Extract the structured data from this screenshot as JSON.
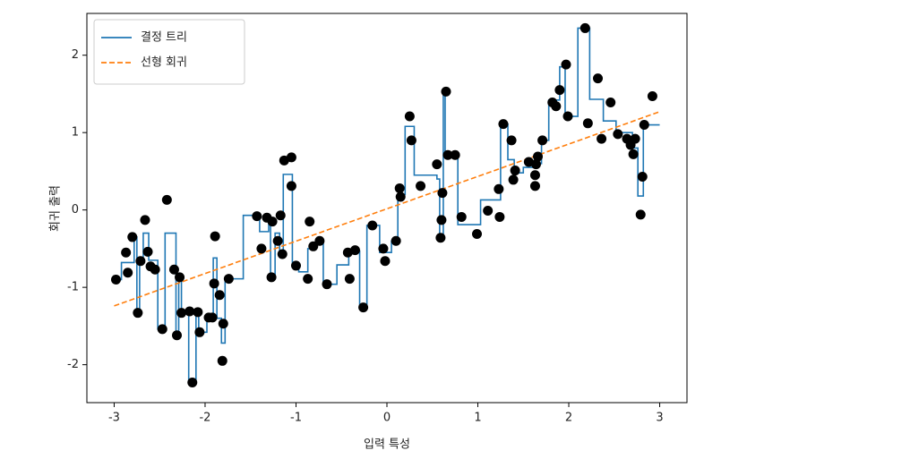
{
  "chart_data": {
    "type": "line",
    "xlabel": "입력 특성",
    "ylabel": "회귀 출력",
    "xlim": [
      -3.3,
      3.3
    ],
    "ylim": [
      -2.49,
      2.54
    ],
    "xticks": [
      -3,
      -2,
      -1,
      0,
      1,
      2,
      3
    ],
    "yticks": [
      -2,
      -1,
      0,
      1,
      2
    ],
    "legend": "upper left",
    "series": [
      {
        "name": "결정 트리",
        "color": "#1f77b4",
        "style": "steps-post",
        "x": [
          -3.0,
          -2.92,
          -2.78,
          -2.75,
          -2.72,
          -2.68,
          -2.62,
          -2.52,
          -2.44,
          -2.32,
          -2.29,
          -2.26,
          -2.18,
          -2.1,
          -2.07,
          -1.98,
          -1.91,
          -1.87,
          -1.82,
          -1.78,
          -1.6,
          -1.58,
          -1.4,
          -1.3,
          -1.28,
          -1.23,
          -1.18,
          -1.14,
          -1.04,
          -0.97,
          -0.87,
          -0.78,
          -0.7,
          -0.55,
          -0.42,
          -0.3,
          -0.22,
          -0.08,
          0.05,
          0.12,
          0.2,
          0.3,
          0.55,
          0.58,
          0.62,
          0.64,
          0.78,
          1.03,
          1.2,
          1.25,
          1.33,
          1.4,
          1.5,
          1.6,
          1.7,
          1.78,
          1.9,
          1.96,
          2.1,
          2.23,
          2.38,
          2.52,
          2.7,
          2.76,
          2.82,
          3.0
        ],
        "values": [
          -0.9,
          -0.68,
          -0.35,
          -1.33,
          -0.66,
          -0.3,
          -0.65,
          -1.54,
          -0.3,
          -1.62,
          -0.87,
          -1.33,
          -2.23,
          -1.32,
          -1.58,
          -1.39,
          -0.62,
          -1.4,
          -1.72,
          -0.89,
          -0.89,
          -0.07,
          -0.28,
          -0.13,
          -0.87,
          -0.3,
          -0.55,
          0.46,
          -0.7,
          -0.8,
          -0.5,
          -0.4,
          -0.96,
          -0.71,
          -0.53,
          -1.26,
          -0.2,
          -0.55,
          -0.4,
          0.2,
          1.08,
          0.45,
          0.4,
          -0.36,
          1.53,
          0.71,
          -0.19,
          0.13,
          0.13,
          1.11,
          0.65,
          0.48,
          0.55,
          0.6,
          0.9,
          1.42,
          1.85,
          1.21,
          2.35,
          1.43,
          1.15,
          1.0,
          0.8,
          0.18,
          1.1,
          1.1
        ]
      },
      {
        "name": "선형 회귀",
        "color": "#ff7f0e",
        "style": "dashed",
        "x": [
          -3,
          3
        ],
        "values": [
          -1.24,
          1.27
        ]
      }
    ],
    "scatter": {
      "color": "#000000",
      "x": [
        -2.98,
        -2.87,
        -2.85,
        -2.8,
        -2.74,
        -2.71,
        -2.66,
        -2.63,
        -2.6,
        -2.55,
        -2.47,
        -2.42,
        -2.34,
        -2.31,
        -2.28,
        -2.26,
        -2.17,
        -2.14,
        -2.08,
        -2.06,
        -1.96,
        -1.92,
        -1.9,
        -1.89,
        -1.84,
        -1.81,
        -1.8,
        -1.74,
        -1.43,
        -1.38,
        -1.32,
        -1.27,
        -1.26,
        -1.2,
        -1.17,
        -1.15,
        -1.13,
        -1.05,
        -1.05,
        -1.0,
        -0.87,
        -0.85,
        -0.81,
        -0.74,
        -0.66,
        -0.43,
        -0.41,
        -0.35,
        -0.26,
        -0.16,
        -0.04,
        -0.02,
        0.1,
        0.14,
        0.15,
        0.25,
        0.27,
        0.37,
        0.55,
        0.59,
        0.6,
        0.61,
        0.65,
        0.67,
        0.75,
        0.82,
        0.99,
        1.11,
        1.23,
        1.24,
        1.28,
        1.37,
        1.39,
        1.41,
        1.56,
        1.63,
        1.63,
        1.64,
        1.66,
        1.71,
        1.82,
        1.86,
        1.9,
        1.97,
        1.99,
        2.18,
        2.21,
        2.32,
        2.36,
        2.46,
        2.54,
        2.64,
        2.68,
        2.71,
        2.73,
        2.79,
        2.81,
        2.83,
        2.92
      ],
      "values": [
        -0.9,
        -0.55,
        -0.81,
        -0.35,
        -1.33,
        -0.66,
        -0.13,
        -0.54,
        -0.73,
        -0.77,
        -1.54,
        0.13,
        -0.77,
        -1.62,
        -0.87,
        -1.33,
        -1.31,
        -2.23,
        -1.32,
        -1.58,
        -1.39,
        -1.39,
        -0.95,
        -0.34,
        -1.1,
        -1.95,
        -1.47,
        -0.89,
        -0.08,
        -0.5,
        -0.1,
        -0.87,
        -0.15,
        -0.4,
        -0.07,
        -0.57,
        0.64,
        0.68,
        0.31,
        -0.72,
        -0.89,
        -0.15,
        -0.47,
        -0.4,
        -0.96,
        -0.55,
        -0.89,
        -0.52,
        -1.26,
        -0.2,
        -0.5,
        -0.66,
        -0.4,
        0.28,
        0.17,
        1.21,
        0.9,
        0.31,
        0.59,
        -0.36,
        -0.13,
        0.22,
        1.53,
        0.71,
        0.71,
        -0.09,
        -0.31,
        -0.01,
        0.27,
        -0.09,
        1.11,
        0.9,
        0.39,
        0.51,
        0.62,
        0.45,
        0.31,
        0.59,
        0.69,
        0.9,
        1.39,
        1.34,
        1.55,
        1.88,
        1.21,
        2.35,
        1.12,
        1.7,
        0.92,
        1.39,
        0.98,
        0.92,
        0.84,
        0.72,
        0.92,
        -0.06,
        0.43,
        1.1,
        1.47
      ]
    }
  }
}
